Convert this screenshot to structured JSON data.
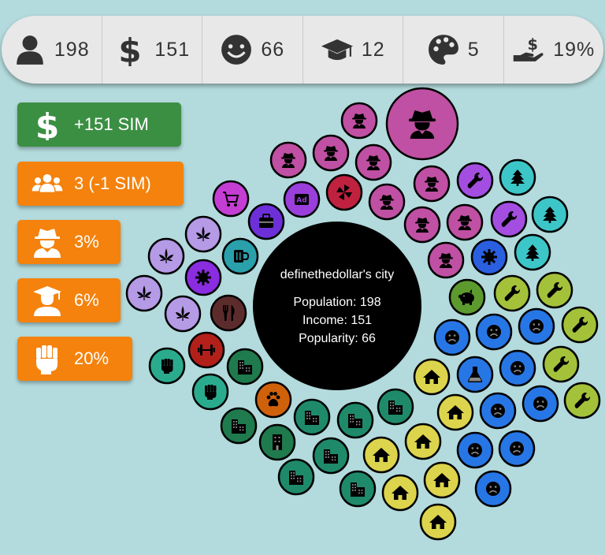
{
  "top_stats": [
    {
      "icon": "person-icon",
      "value": "198"
    },
    {
      "icon": "dollar-icon",
      "value": "151"
    },
    {
      "icon": "smile-icon",
      "value": "66"
    },
    {
      "icon": "graduation-cap-icon",
      "value": "12"
    },
    {
      "icon": "palette-icon",
      "value": "5"
    },
    {
      "icon": "hand-dollar-icon",
      "value": "19%"
    }
  ],
  "side_buttons": [
    {
      "icon": "dollar-icon",
      "label": "+151 SIM",
      "color": "#3b8f43"
    },
    {
      "icon": "users-icon",
      "label": "3 (-1 SIM)",
      "color": "#f4820d"
    },
    {
      "icon": "spy-icon",
      "label": "3%",
      "color": "#f4820d"
    },
    {
      "icon": "graduate-icon",
      "label": "6%",
      "color": "#f4820d"
    },
    {
      "icon": "fist-icon",
      "label": "20%",
      "color": "#f4820d"
    }
  ],
  "city": {
    "name": "definethedollar's city",
    "population": "Population: 198",
    "income": "Income: 151",
    "popularity": "Popularity: 66",
    "center_color": "#000000"
  },
  "building_colors": {
    "spy": "#c050a3",
    "leaf": "#b59ae6",
    "ad": "#9a3fdc",
    "cart": "#c43ed4",
    "briefcase": "#6d30d8",
    "pinwheel": "#c0213f",
    "mug": "#2aa0ab",
    "gear-purple": "#8a2ce0",
    "gear-blue": "#2a5fe0",
    "fork": "#5c2c2c",
    "barbell": "#b3201a",
    "fist": "#2bab8e",
    "paw": "#d0610b",
    "office": "#1f7a4d",
    "office-teal": "#1f8a6a",
    "house": "#dcd44c",
    "sad": "#2776e6",
    "flask": "#2776e6",
    "wrench-olive": "#a3c23a",
    "wrench-purple": "#a34ee0",
    "tree": "#3dc6c8",
    "piggy": "#5d9a2e"
  }
}
